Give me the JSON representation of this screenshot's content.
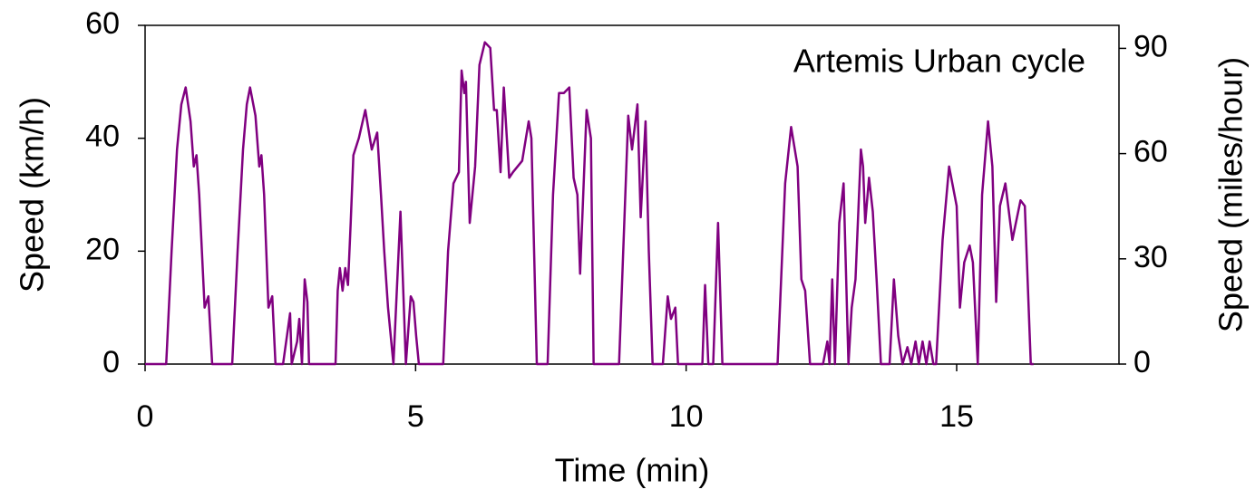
{
  "chart_data": {
    "type": "line",
    "annotation": "Artemis Urban cycle",
    "x_label": "Time (min)",
    "y_label": "Speed (km/h)",
    "y2_label": "Speed (miles/hour)",
    "xlim": [
      0,
      18
    ],
    "xticks": [
      0,
      5,
      10,
      15
    ],
    "ylim": [
      0,
      60
    ],
    "yticks": [
      0,
      20,
      40,
      60
    ],
    "y2lim": [
      0,
      96.56
    ],
    "y2ticks": [
      0,
      30,
      60,
      90
    ],
    "x": [
      0,
      0.39,
      0.49,
      0.59,
      0.67,
      0.75,
      0.84,
      0.9,
      0.95,
      1.0,
      1.1,
      1.17,
      1.24,
      1.61,
      1.71,
      1.81,
      1.88,
      1.94,
      2.04,
      2.11,
      2.15,
      2.2,
      2.28,
      2.35,
      2.41,
      2.55,
      2.68,
      2.71,
      2.81,
      2.85,
      2.9,
      2.95,
      3.0,
      3.03,
      3.52,
      3.56,
      3.6,
      3.65,
      3.7,
      3.75,
      3.8,
      3.85,
      3.95,
      4.07,
      4.19,
      4.29,
      4.36,
      4.42,
      4.49,
      4.59,
      4.72,
      4.82,
      4.91,
      4.96,
      5.01,
      5.06,
      5.51,
      5.6,
      5.7,
      5.8,
      5.85,
      5.9,
      5.93,
      6.0,
      6.1,
      6.18,
      6.28,
      6.38,
      6.45,
      6.5,
      6.57,
      6.63,
      6.73,
      6.8,
      6.97,
      7.09,
      7.14,
      7.24,
      7.44,
      7.54,
      7.65,
      7.74,
      7.84,
      7.92,
      7.99,
      8.04,
      8.16,
      8.24,
      8.29,
      8.76,
      8.93,
      9.0,
      9.1,
      9.16,
      9.25,
      9.31,
      9.38,
      9.57,
      9.66,
      9.72,
      9.8,
      9.85,
      10.3,
      10.35,
      10.41,
      10.5,
      10.59,
      10.67,
      11.69,
      11.83,
      11.94,
      12.06,
      12.13,
      12.2,
      12.29,
      12.53,
      12.61,
      12.65,
      12.7,
      12.75,
      12.83,
      12.91,
      13.0,
      13.06,
      13.13,
      13.23,
      13.27,
      13.31,
      13.38,
      13.45,
      13.52,
      13.6,
      13.76,
      13.84,
      13.92,
      14.0,
      14.09,
      14.16,
      14.24,
      14.3,
      14.37,
      14.44,
      14.5,
      14.57,
      14.62,
      14.74,
      14.86,
      15.0,
      15.06,
      15.14,
      15.24,
      15.3,
      15.39,
      15.47,
      15.58,
      15.66,
      15.73,
      15.8,
      15.9,
      16.03,
      16.18,
      16.26,
      16.37,
      16.42
    ],
    "series": [
      {
        "color": "#800080",
        "values": [
          0,
          0,
          20,
          38,
          46,
          49,
          43,
          35,
          37,
          30,
          10,
          12,
          0,
          0,
          20,
          38,
          46,
          49,
          44,
          35,
          37,
          30,
          10,
          12,
          0,
          0,
          9,
          0,
          4,
          8,
          0,
          15,
          11,
          0,
          0,
          13,
          17,
          13,
          17,
          14,
          25,
          37,
          40,
          45,
          38,
          41,
          30,
          20,
          10,
          0,
          27,
          0,
          12,
          11,
          5,
          0,
          0,
          20,
          32,
          34,
          52,
          48,
          50,
          25,
          35,
          53,
          57,
          56,
          45,
          45,
          34,
          49,
          33,
          34,
          36,
          43,
          40,
          0,
          0,
          30,
          48,
          48,
          49,
          33,
          30,
          16,
          45,
          40,
          0,
          0,
          44,
          38,
          46,
          26,
          43,
          20,
          0,
          0,
          12,
          8,
          10,
          0,
          0,
          14,
          0,
          0,
          25,
          0,
          0,
          32,
          42,
          35,
          15,
          13,
          0,
          0,
          4,
          0,
          15,
          0,
          25,
          32,
          0,
          10,
          15,
          38,
          35,
          25,
          33,
          27,
          15,
          0,
          0,
          15,
          5,
          0,
          3,
          0,
          4,
          0,
          4,
          0,
          4,
          0,
          0,
          22,
          35,
          28,
          10,
          18,
          21,
          18,
          0,
          30,
          43,
          35,
          11,
          28,
          32,
          22,
          29,
          28,
          0,
          0
        ]
      }
    ]
  }
}
